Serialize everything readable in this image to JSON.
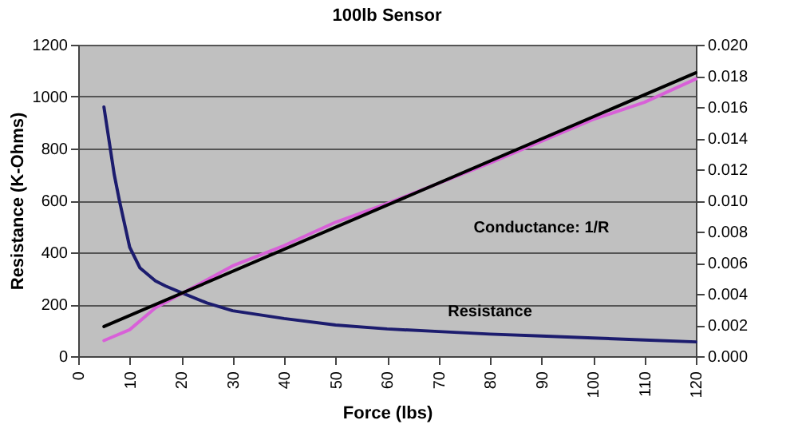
{
  "chart_data": {
    "type": "line",
    "title": "100lb Sensor",
    "xlabel": "Force (lbs)",
    "ylabel": "Resistance (K-Ohms)",
    "x": [
      5,
      7,
      8,
      10,
      12,
      15,
      17,
      20,
      25,
      30,
      40,
      50,
      60,
      70,
      80,
      90,
      100,
      110,
      120
    ],
    "series": [
      {
        "name": "Resistance",
        "color": "#1c1c6e",
        "values": [
          960,
          700,
          600,
          420,
          340,
          290,
          270,
          245,
          205,
          175,
          145,
          120,
          105,
          95,
          85,
          78,
          70,
          62,
          55
        ]
      },
      {
        "name": "Conductance: 1/R",
        "color": "#d860d8",
        "axis": "y2",
        "x": [
          5,
          10,
          15,
          20,
          30,
          40,
          50,
          60,
          70,
          80,
          90,
          100,
          110,
          120
        ],
        "values": [
          0.001,
          0.0017,
          0.0031,
          0.004,
          0.0058,
          0.0071,
          0.0086,
          0.0098,
          0.0111,
          0.0124,
          0.0138,
          0.0152,
          0.0163,
          0.0178
        ]
      },
      {
        "color": "#000000",
        "axis": "y2",
        "x": [
          5,
          120
        ],
        "values": [
          0.0019,
          0.0182
        ]
      }
    ],
    "xlim": [
      0,
      120
    ],
    "xticks": [
      0,
      10,
      20,
      30,
      40,
      50,
      60,
      70,
      80,
      90,
      100,
      110,
      120
    ],
    "ylim": [
      0,
      1200
    ],
    "yticks": [
      0,
      200,
      400,
      600,
      800,
      1000,
      1200
    ],
    "y2lim": [
      0,
      0.02
    ],
    "y2ticks": [
      {
        "value": 0,
        "label": "0.000"
      },
      {
        "value": 0.002,
        "label": "0.002"
      },
      {
        "value": 0.004,
        "label": "0.004"
      },
      {
        "value": 0.006,
        "label": "0.006"
      },
      {
        "value": 0.008,
        "label": "0.008"
      },
      {
        "value": 0.01,
        "label": "0.010"
      },
      {
        "value": 0.012,
        "label": "0.012"
      },
      {
        "value": 0.014,
        "label": "0.014"
      },
      {
        "value": 0.016,
        "label": "0.016"
      },
      {
        "value": 0.018,
        "label": "0.018"
      },
      {
        "value": 0.02,
        "label": "0.020"
      }
    ],
    "grid": "y"
  }
}
